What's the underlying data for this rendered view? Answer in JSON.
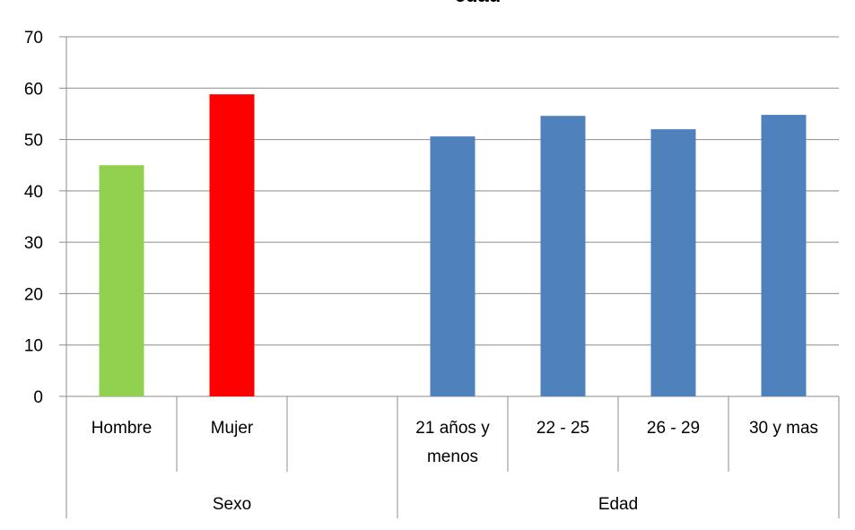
{
  "chart_data": {
    "type": "bar",
    "title": "edad",
    "ylim": [
      0,
      70
    ],
    "yticks": [
      0,
      10,
      20,
      30,
      40,
      50,
      60,
      70
    ],
    "grid": true,
    "categories": [
      "Hombre",
      "Mujer",
      "",
      "21 años y menos",
      "22 - 25",
      "26 - 29",
      "30 y mas"
    ],
    "values": [
      45,
      58.8,
      null,
      50.6,
      54.6,
      52,
      54.8
    ],
    "bar_colors": [
      "#92d050",
      "#ff0000",
      null,
      "#4f81bd",
      "#4f81bd",
      "#4f81bd",
      "#4f81bd"
    ],
    "groups": [
      {
        "label": "Sexo",
        "span": [
          0,
          2
        ]
      },
      {
        "label": "Edad",
        "span": [
          3,
          6
        ]
      }
    ]
  }
}
